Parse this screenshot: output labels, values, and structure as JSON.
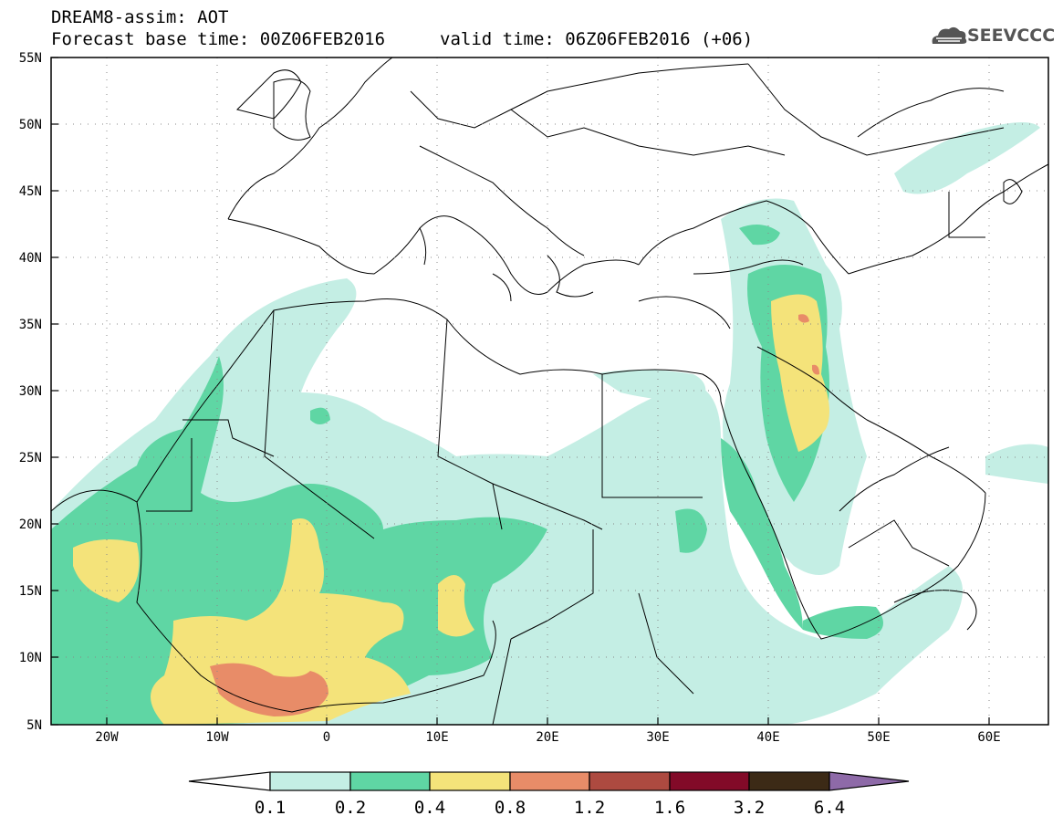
{
  "header": {
    "line1": "DREAM8-assim: AOT",
    "line2": "Forecast base time: 00Z06FEB2016",
    "line3": "valid time: 06Z06FEB2016 (+06)",
    "logo": "SEEVCCC"
  },
  "map": {
    "lat_labels": [
      "55N",
      "50N",
      "45N",
      "40N",
      "35N",
      "30N",
      "25N",
      "20N",
      "15N",
      "10N",
      "5N"
    ],
    "lon_labels": [
      "20W",
      "10W",
      "0",
      "10E",
      "20E",
      "30E",
      "40E",
      "50E",
      "60E"
    ],
    "lat_range": [
      5,
      55
    ],
    "lon_range": [
      -25,
      65
    ]
  },
  "colorbar": {
    "labels": [
      "0.1",
      "0.2",
      "0.4",
      "0.8",
      "1.2",
      "1.6",
      "3.2",
      "6.4"
    ],
    "colors": [
      "#ffffff",
      "#c4eee4",
      "#5fd6a4",
      "#f4e37a",
      "#e88c68",
      "#ad4a40",
      "#820a28",
      "#3c2a16",
      "#8e6aa8"
    ]
  }
}
